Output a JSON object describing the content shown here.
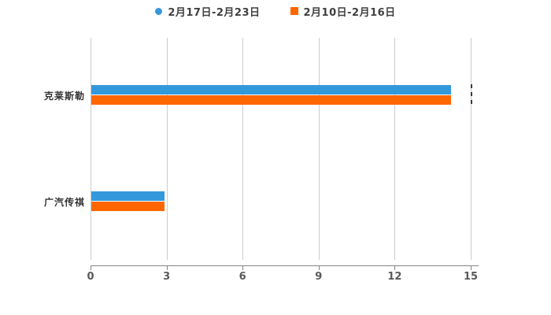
{
  "background": "#ffffff",
  "legend": {
    "items": [
      {
        "label": "2月17日-2月23日",
        "color": "#3499db",
        "marker": "circle"
      },
      {
        "label": "2月10日-2月16日",
        "color": "#ff6600",
        "marker": "square"
      }
    ]
  },
  "chart_data": {
    "type": "bar",
    "orientation": "horizontal",
    "title": "",
    "categories": [
      "克莱斯勒",
      "广汽传祺"
    ],
    "series": [
      {
        "name": "2月17日-2月23日",
        "color": "#3499db",
        "values": [
          14.2,
          2.9
        ]
      },
      {
        "name": "2月10日-2月16日",
        "color": "#ff6600",
        "values": [
          14.2,
          2.9
        ]
      }
    ],
    "xlabel": "",
    "ylabel": "",
    "xlim": [
      0,
      15
    ],
    "x_ticks": [
      0,
      3,
      6,
      9,
      12,
      15
    ],
    "x_tick_labels": [
      "0",
      "3",
      "6",
      "9",
      "12",
      "15"
    ],
    "grid": true,
    "legend_position": "top"
  },
  "colors": {
    "gridline": "#cccccc",
    "axis_line": "#848484",
    "tick_label": "#595959",
    "category_label": "#333333",
    "legend_text": "#404040"
  }
}
